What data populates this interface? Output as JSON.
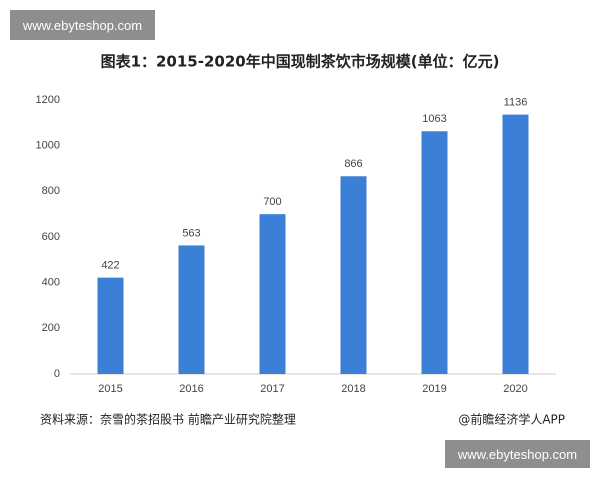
{
  "watermark": "www.ebyteshop.com",
  "chart_data": {
    "type": "bar",
    "title": "图表1：2015-2020年中国现制茶饮市场规模(单位：亿元)",
    "categories": [
      "2015",
      "2016",
      "2017",
      "2018",
      "2019",
      "2020"
    ],
    "values": [
      422,
      563,
      700,
      866,
      1063,
      1136
    ],
    "color": "#3b7fd6",
    "ylim": [
      0,
      1200
    ],
    "yticks": [
      0,
      200,
      400,
      600,
      800,
      1000,
      1200
    ],
    "grid": false,
    "source": "资料来源：奈雪的茶招股书 前瞻产业研究院整理",
    "credit": "@前瞻经济学人APP"
  }
}
